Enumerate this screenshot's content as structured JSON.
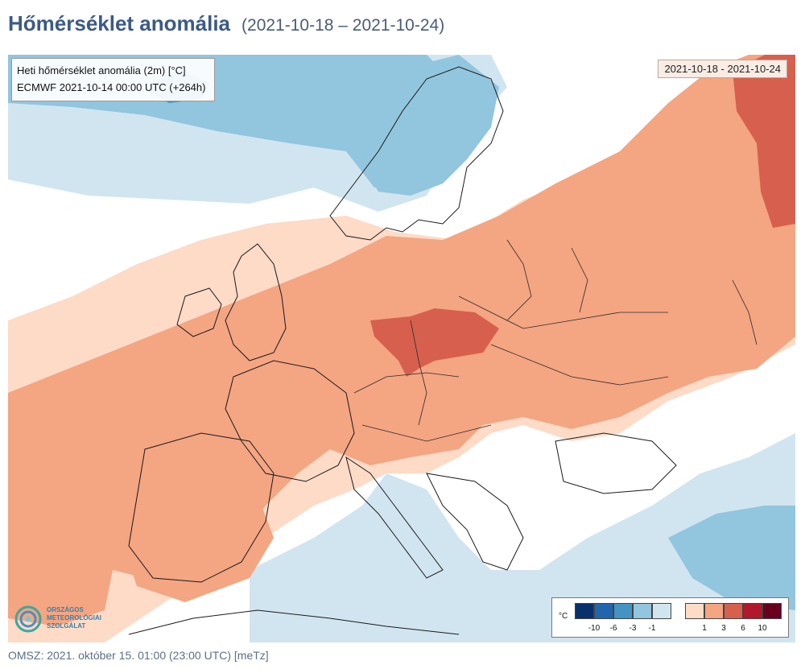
{
  "page": {
    "title": "Hőmérséklet anomália",
    "period": "(2021-10-18 – 2021-10-24)"
  },
  "map": {
    "info_line1": "Heti hőmérséklet anomália (2m) [°C]",
    "info_line2": "ECMWF 2021-10-14 00:00 UTC (+264h)",
    "date_range": "2021-10-18 - 2021-10-24",
    "legend": {
      "unit": "°C",
      "cold_ticks": [
        "-10",
        "-6",
        "-3",
        "-1"
      ],
      "warm_ticks": [
        "1",
        "3",
        "6",
        "10"
      ],
      "cold_colors": [
        "#08306b",
        "#2166ac",
        "#4393c3",
        "#92c5de",
        "#d1e5f0"
      ],
      "warm_colors": [
        "#fddbc7",
        "#f4a582",
        "#d6604d",
        "#b2182b",
        "#67001f"
      ]
    },
    "logo": {
      "line1": "ORSZÁGOS",
      "line2": "METEOROLÓGIAI",
      "line3": "SZOLGÁLAT"
    }
  },
  "footer": {
    "text": "OMSZ: 2021. október 15. 01:00 (23:00  UTC)  [meTz]"
  }
}
